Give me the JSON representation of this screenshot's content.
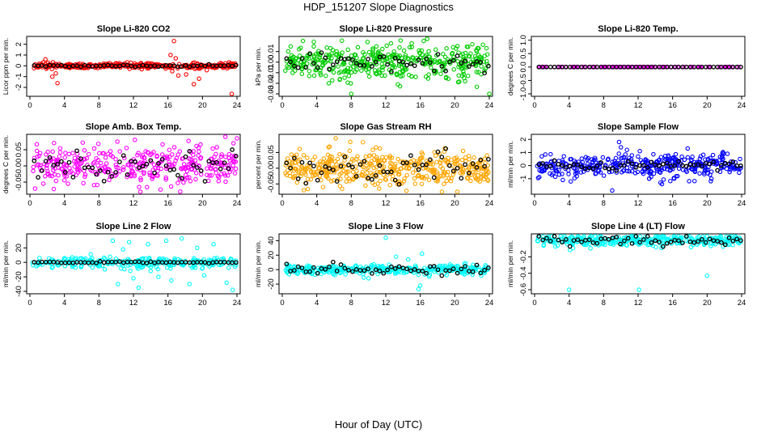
{
  "title": "HDP_151207  Slope Diagnostics",
  "xlabel": "Hour of Day (UTC)",
  "chart_data": [
    {
      "type": "scatter",
      "title": "Slope Li-820 CO2",
      "ylabel": "Licor ppm per min.",
      "xlim": [
        0,
        24
      ],
      "xticks": [
        0,
        4,
        8,
        12,
        16,
        20,
        24
      ],
      "xtick_labels": [
        "0",
        "4",
        "8",
        "12",
        "16",
        "20",
        "24"
      ],
      "ylim": [
        -2.6,
        2.5
      ],
      "yticks": [
        -2,
        -1,
        0,
        1,
        2
      ],
      "ytick_labels": [
        "-2",
        "-1",
        "0",
        "1",
        "2"
      ],
      "series_color": "#ff0000",
      "mean_color": "#000000",
      "noise": 0.12,
      "mean_noise": 0.06,
      "n": 360,
      "outliers": [
        [
          1.8,
          0.6
        ],
        [
          2.6,
          -1.0
        ],
        [
          3.0,
          -0.7
        ],
        [
          3.2,
          -1.6
        ],
        [
          16.3,
          1.0
        ],
        [
          16.7,
          2.3
        ],
        [
          16.9,
          0.7
        ],
        [
          17.2,
          -0.9
        ],
        [
          16.5,
          -0.5
        ],
        [
          19.6,
          -1.2
        ],
        [
          18.1,
          -0.8
        ],
        [
          19.0,
          -1.7
        ],
        [
          20.5,
          -0.4
        ],
        [
          23.4,
          -2.6
        ]
      ]
    },
    {
      "type": "scatter",
      "title": "Slope Li-820 Pressure",
      "ylabel": "kPa per min.",
      "xlim": [
        0,
        24
      ],
      "xticks": [
        0,
        4,
        8,
        12,
        16,
        20,
        24
      ],
      "xtick_labels": [
        "0",
        "4",
        "8",
        "12",
        "16",
        "20",
        "24"
      ],
      "ylim": [
        -0.03,
        0.022
      ],
      "yticks": [
        -0.03,
        -0.02,
        -0.01,
        0.0,
        0.01
      ],
      "ytick_labels": [
        "-0.03",
        "-0.02",
        "-0.01",
        "0.00",
        "0.01"
      ],
      "series_color": "#00cc00",
      "mean_color": "#000000",
      "noise": 0.008,
      "mean_noise": 0.005,
      "n": 420,
      "outliers": [
        [
          8.0,
          -0.03
        ],
        [
          24.0,
          -0.03
        ],
        [
          5.4,
          -0.02
        ],
        [
          13.4,
          -0.021
        ],
        [
          16.4,
          0.02
        ],
        [
          2.4,
          0.02
        ],
        [
          21.2,
          -0.018
        ]
      ]
    },
    {
      "type": "scatter",
      "title": "Slope Li-820 Temp.",
      "ylabel": "degrees C per min.",
      "xlim": [
        0,
        24
      ],
      "xticks": [
        0,
        4,
        8,
        12,
        16,
        20,
        24
      ],
      "xtick_labels": [
        "0",
        "4",
        "8",
        "12",
        "16",
        "20",
        "24"
      ],
      "ylim": [
        -1.0,
        1.05
      ],
      "yticks": [
        -1.0,
        -0.5,
        0.0,
        0.5,
        1.0
      ],
      "ytick_labels": [
        "-1.0",
        "-0.5",
        "0.0",
        "0.5",
        "1.0"
      ],
      "series_color": "#ff00ff",
      "mean_color": "#000000",
      "noise": 0.0,
      "mean_noise": 0.0,
      "n": 110,
      "outliers": []
    },
    {
      "type": "scatter",
      "title": "Slope Amb. Box Temp.",
      "ylabel": "degrees C per min.",
      "xlim": [
        0,
        24
      ],
      "xticks": [
        0,
        4,
        8,
        12,
        16,
        20,
        24
      ],
      "xtick_labels": [
        "0",
        "4",
        "8",
        "12",
        "16",
        "20",
        "24"
      ],
      "ylim": [
        -0.08,
        0.09
      ],
      "yticks": [
        -0.05,
        0.0,
        0.05
      ],
      "ytick_labels": [
        "-0.05",
        "0.00",
        "0.05"
      ],
      "series_color": "#ff00ff",
      "mean_color": "#000000",
      "noise": 0.032,
      "mean_noise": 0.022,
      "n": 360,
      "outliers": [
        [
          24.0,
          0.085
        ],
        [
          0.6,
          -0.07
        ],
        [
          23.6,
          0.07
        ]
      ]
    },
    {
      "type": "scatter",
      "title": "Slope Gas Stream RH",
      "ylabel": "percent per min.",
      "xlim": [
        0,
        24
      ],
      "xticks": [
        0,
        4,
        8,
        12,
        16,
        20,
        24
      ],
      "xtick_labels": [
        "0",
        "4",
        "8",
        "12",
        "16",
        "20",
        "24"
      ],
      "ylim": [
        -0.075,
        0.1
      ],
      "yticks": [
        -0.05,
        0.0,
        0.05
      ],
      "ytick_labels": [
        "-0.05",
        "0.00",
        "0.05"
      ],
      "series_color": "#ffa500",
      "mean_color": "#000000",
      "noise": 0.028,
      "mean_noise": 0.025,
      "n": 440,
      "outliers": [
        [
          6.2,
          0.095
        ],
        [
          20.3,
          -0.075
        ],
        [
          2.5,
          -0.07
        ],
        [
          14.4,
          -0.072
        ]
      ]
    },
    {
      "type": "scatter",
      "title": "Slope Sample Flow",
      "ylabel": "ml/min per min.",
      "xlim": [
        0,
        24
      ],
      "xticks": [
        0,
        4,
        8,
        12,
        16,
        20,
        24
      ],
      "xtick_labels": [
        "0",
        "4",
        "8",
        "12",
        "16",
        "20",
        "24"
      ],
      "ylim": [
        -2.0,
        2.2
      ],
      "yticks": [
        -1,
        0,
        1,
        2
      ],
      "ytick_labels": [
        "-1",
        "0",
        "1",
        "2"
      ],
      "series_color": "#0000ff",
      "mean_color": "#000000",
      "noise": 0.45,
      "mean_noise": 0.15,
      "n": 380,
      "outliers": [
        [
          9.0,
          -1.9
        ],
        [
          9.8,
          1.8
        ],
        [
          10.0,
          1.4
        ],
        [
          12.2,
          1.1
        ],
        [
          20.5,
          -1.0
        ],
        [
          14.6,
          -1.3
        ]
      ]
    },
    {
      "type": "scatter",
      "title": "Slope Line 2 Flow",
      "ylabel": "ml/min per min.",
      "xlim": [
        0,
        24
      ],
      "xticks": [
        0,
        4,
        8,
        12,
        16,
        20,
        24
      ],
      "xtick_labels": [
        "0",
        "4",
        "8",
        "12",
        "16",
        "20",
        "24"
      ],
      "ylim": [
        -40,
        36
      ],
      "yticks": [
        -40,
        -20,
        0,
        20
      ],
      "ytick_labels": [
        "-40",
        "-20",
        "0",
        "20"
      ],
      "series_color": "#00ffff",
      "mean_color": "#000000",
      "noise": 4.0,
      "mean_noise": 0.6,
      "n": 280,
      "outliers": [
        [
          9.6,
          30
        ],
        [
          10.2,
          -30
        ],
        [
          11.5,
          28
        ],
        [
          12.6,
          -35
        ],
        [
          13.7,
          25
        ],
        [
          14.9,
          -20
        ],
        [
          15.8,
          30
        ],
        [
          16.4,
          -25
        ],
        [
          17.6,
          33
        ],
        [
          18.5,
          -30
        ],
        [
          19.4,
          20
        ],
        [
          20.2,
          -18
        ],
        [
          21.3,
          25
        ],
        [
          22.8,
          -28
        ],
        [
          23.5,
          -38
        ],
        [
          10.8,
          18
        ],
        [
          12.0,
          -22
        ],
        [
          14.0,
          -12
        ]
      ]
    },
    {
      "type": "scatter",
      "title": "Slope Line 3 Flow",
      "ylabel": "ml/min per min.",
      "xlim": [
        0,
        24
      ],
      "xticks": [
        0,
        4,
        8,
        12,
        16,
        20,
        24
      ],
      "xtick_labels": [
        "0",
        "4",
        "8",
        "12",
        "16",
        "20",
        "24"
      ],
      "ylim": [
        -30,
        46
      ],
      "yticks": [
        -20,
        0,
        20,
        40
      ],
      "ytick_labels": [
        "-20",
        "0",
        "20",
        "40"
      ],
      "series_color": "#00ffff",
      "mean_color": "#000000",
      "noise": 3.0,
      "mean_noise": 3.5,
      "n": 380,
      "outliers": [
        [
          12.0,
          44
        ],
        [
          16.0,
          -22
        ],
        [
          15.8,
          -27
        ],
        [
          16.2,
          22
        ],
        [
          13.2,
          18
        ],
        [
          14.6,
          14
        ],
        [
          10.0,
          -12
        ]
      ]
    },
    {
      "type": "scatter",
      "title": "Slope Line 4 (LT) Flow",
      "ylabel": "ml/min per min.",
      "xlim": [
        0,
        24
      ],
      "xticks": [
        0,
        4,
        8,
        12,
        16,
        20,
        24
      ],
      "xtick_labels": [
        "0",
        "4",
        "8",
        "12",
        "16",
        "20",
        "24"
      ],
      "ylim": [
        -0.62,
        0.05
      ],
      "yticks": [
        -0.6,
        -0.4,
        -0.2
      ],
      "ytick_labels": [
        "-0.6",
        "-0.4",
        "-0.2"
      ],
      "series_color": "#00ffff",
      "mean_color": "#000000",
      "noise": 0.035,
      "mean_noise": 0.03,
      "n": 360,
      "outliers": [
        [
          4.0,
          -0.6
        ],
        [
          12.1,
          -0.6
        ],
        [
          20.0,
          -0.43
        ]
      ]
    }
  ]
}
